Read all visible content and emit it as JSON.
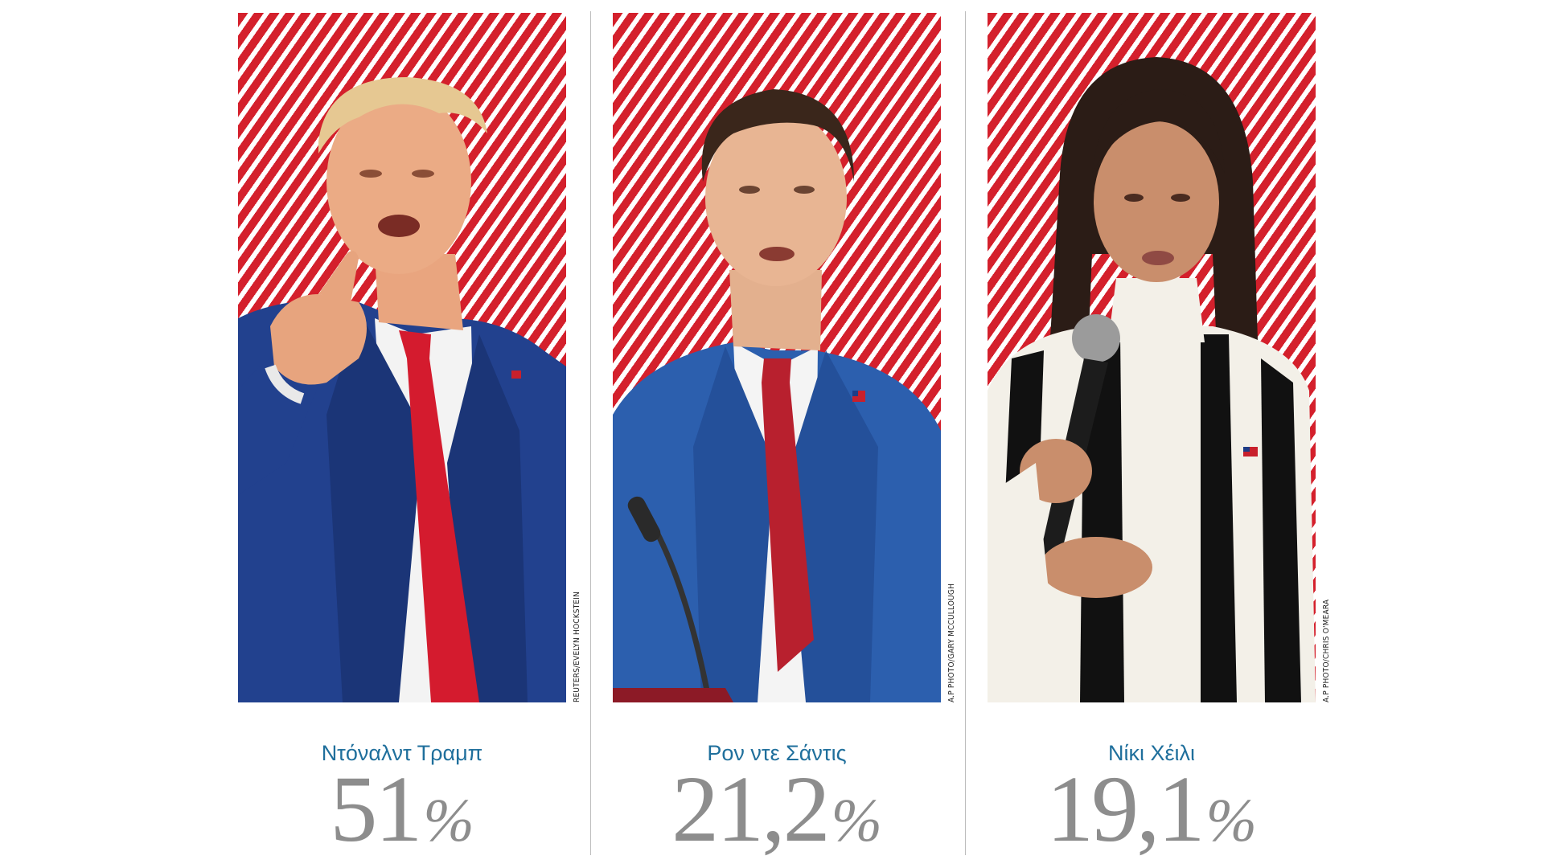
{
  "colors": {
    "stripe_red": "#d4202c",
    "stripe_white": "#ffffff",
    "name_blue": "#1f6f9c",
    "percent_gray": "#8d8d8d"
  },
  "candidates": [
    {
      "name": "Ντόναλντ Τραμπ",
      "percent": "51",
      "percent_sign": "%",
      "percent_value": 51,
      "photo_credit": "REUTERS/EVELYN HOCKSTEIN",
      "suit_color": "#22418e",
      "tie_color": "#d41b2e"
    },
    {
      "name": "Ρον ντε Σάντις",
      "percent": "21,2",
      "percent_sign": "%",
      "percent_value": 21.2,
      "photo_credit": "A.P PHOTO/GARY MCCULLOUGH",
      "suit_color": "#2c5fae",
      "tie_color": "#b8202e"
    },
    {
      "name": "Νίκι Χέιλι",
      "percent": "19,1",
      "percent_sign": "%",
      "percent_value": 19.1,
      "photo_credit": "A.P PHOTO/CHRIS O'MEARA",
      "suit_color": "#111111",
      "tie_color": "#f2f0ea"
    }
  ]
}
